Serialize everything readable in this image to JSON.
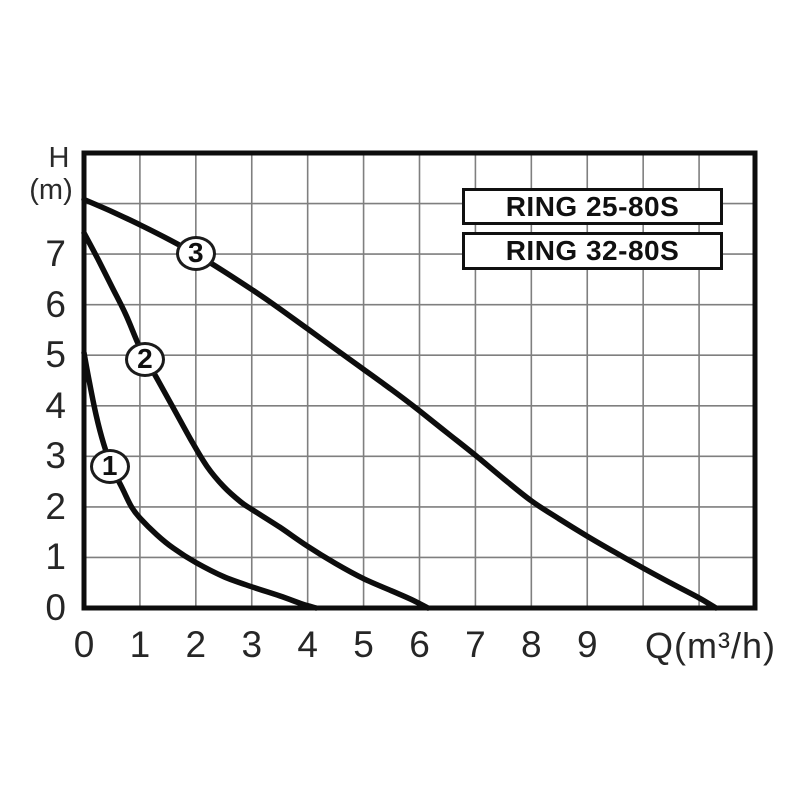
{
  "axes": {
    "y_label_symbol": "H",
    "y_label_unit": "(m)",
    "x_label": "Q(m³/h)"
  },
  "legend": {
    "items": [
      "RING 25-80S",
      "RING 32-80S"
    ]
  },
  "chart_data": {
    "type": "line",
    "title": "",
    "xlabel": "Q (m³/h)",
    "ylabel": "H (m)",
    "xlim": [
      0,
      12
    ],
    "ylim": [
      0,
      9
    ],
    "grid": true,
    "legend_position": "top-right",
    "x_ticks": [
      0,
      1,
      2,
      3,
      4,
      5,
      6,
      7,
      8,
      9
    ],
    "y_ticks": [
      0,
      1,
      2,
      3,
      4,
      5,
      6,
      7
    ],
    "colors": {
      "curve": "#0d0d0d",
      "grid": "#7f7f7f",
      "border": "#0d0d0d",
      "background": "#ffffff"
    },
    "series": [
      {
        "name": "1",
        "marker": [
          0.46,
          2.8
        ],
        "points": [
          [
            0,
            5.05
          ],
          [
            0.1,
            4.45
          ],
          [
            0.22,
            3.8
          ],
          [
            0.35,
            3.25
          ],
          [
            0.5,
            2.78
          ],
          [
            0.68,
            2.38
          ],
          [
            0.85,
            2.0
          ],
          [
            1.0,
            1.78
          ],
          [
            1.3,
            1.45
          ],
          [
            1.6,
            1.18
          ],
          [
            2.0,
            0.9
          ],
          [
            2.5,
            0.62
          ],
          [
            3.0,
            0.42
          ],
          [
            3.5,
            0.24
          ],
          [
            3.9,
            0.08
          ],
          [
            4.15,
            0
          ]
        ]
      },
      {
        "name": "2",
        "marker": [
          1.09,
          4.92
        ],
        "points": [
          [
            0,
            7.42
          ],
          [
            0.25,
            6.9
          ],
          [
            0.5,
            6.35
          ],
          [
            0.75,
            5.8
          ],
          [
            1.0,
            5.15
          ],
          [
            1.3,
            4.55
          ],
          [
            1.6,
            3.95
          ],
          [
            1.9,
            3.35
          ],
          [
            2.2,
            2.8
          ],
          [
            2.5,
            2.4
          ],
          [
            2.8,
            2.1
          ],
          [
            3.0,
            1.95
          ],
          [
            3.5,
            1.6
          ],
          [
            4.0,
            1.22
          ],
          [
            4.5,
            0.88
          ],
          [
            5.0,
            0.58
          ],
          [
            5.5,
            0.34
          ],
          [
            5.85,
            0.17
          ],
          [
            6.15,
            0
          ]
        ]
      },
      {
        "name": "3",
        "marker": [
          2.0,
          7.02
        ],
        "points": [
          [
            0,
            8.08
          ],
          [
            0.5,
            7.84
          ],
          [
            1.0,
            7.58
          ],
          [
            1.5,
            7.3
          ],
          [
            2.0,
            7.0
          ],
          [
            2.5,
            6.66
          ],
          [
            3.0,
            6.3
          ],
          [
            3.5,
            5.92
          ],
          [
            4.0,
            5.52
          ],
          [
            4.5,
            5.12
          ],
          [
            5.0,
            4.72
          ],
          [
            5.5,
            4.32
          ],
          [
            6.0,
            3.9
          ],
          [
            6.5,
            3.46
          ],
          [
            7.0,
            3.02
          ],
          [
            7.5,
            2.56
          ],
          [
            8.0,
            2.12
          ],
          [
            8.5,
            1.76
          ],
          [
            9.0,
            1.42
          ],
          [
            9.5,
            1.1
          ],
          [
            10.0,
            0.79
          ],
          [
            10.5,
            0.49
          ],
          [
            11.0,
            0.2
          ],
          [
            11.3,
            0
          ]
        ]
      }
    ]
  }
}
